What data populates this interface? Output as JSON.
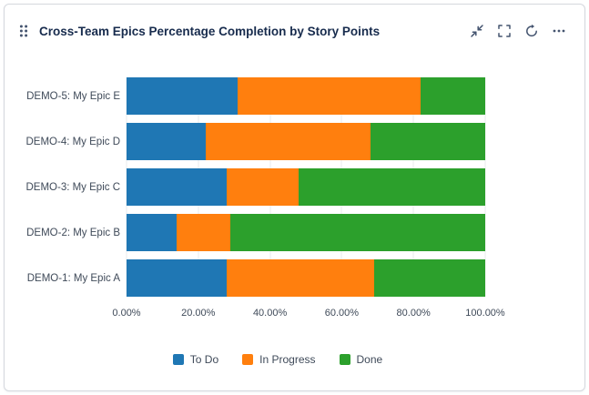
{
  "card": {
    "title": "Cross-Team Epics Percentage Completion by Story Points",
    "toolbar_icons": {
      "drag_handle": "drag-handle-icon",
      "collapse": "collapse-icon",
      "fullscreen": "fullscreen-icon",
      "refresh": "refresh-icon",
      "more": "more-icon (⋯)"
    }
  },
  "chart_data": {
    "type": "bar",
    "orientation": "horizontal",
    "stacked": true,
    "title": "Cross-Team Epics Percentage Completion by Story Points",
    "categories": [
      "DEMO-5: My Epic E",
      "DEMO-4: My Epic D",
      "DEMO-3: My Epic C",
      "DEMO-2: My Epic B",
      "DEMO-1: My Epic A"
    ],
    "series": [
      {
        "name": "To Do",
        "color": "#1f77b4",
        "values": [
          31,
          22,
          28,
          14,
          28
        ]
      },
      {
        "name": "In Progress",
        "color": "#ff7f0e",
        "values": [
          51,
          46,
          20,
          15,
          41
        ]
      },
      {
        "name": "Done",
        "color": "#2ca02c",
        "values": [
          18,
          32,
          52,
          71,
          31
        ]
      }
    ],
    "x_ticks": [
      "0.00%",
      "20.00%",
      "40.00%",
      "60.00%",
      "80.00%",
      "100.00%"
    ],
    "xlim": [
      0,
      100
    ],
    "unit": "%",
    "grid": true,
    "legend_position": "bottom"
  }
}
